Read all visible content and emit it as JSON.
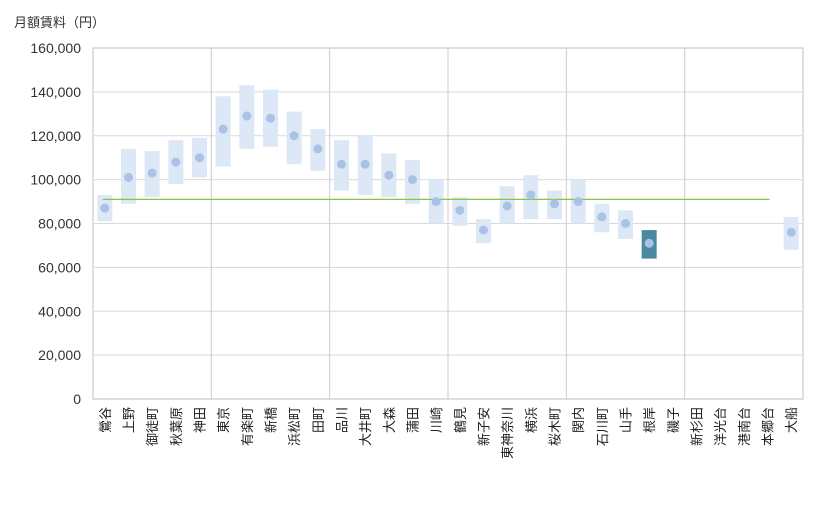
{
  "chart_data": {
    "type": "range-dot",
    "unit_label": "月額賃料（円）",
    "y_ticks": [
      "160,000",
      "140,000",
      "120,000",
      "100,000",
      "80,000",
      "60,000",
      "40,000",
      "20,000",
      "0"
    ],
    "ylim": [
      0,
      160000
    ],
    "categories": [
      "鶯谷",
      "上野",
      "御徒町",
      "秋葉原",
      "神田",
      "東京",
      "有楽町",
      "新橋",
      "浜松町",
      "田町",
      "品川",
      "大井町",
      "大森",
      "蒲田",
      "川崎",
      "鶴見",
      "新子安",
      "東神奈川",
      "横浜",
      "桜木町",
      "関内",
      "石川町",
      "山手",
      "根岸",
      "磯子",
      "新杉田",
      "洋光台",
      "港南台",
      "本郷台",
      "大船"
    ],
    "group_separators_after": [
      4,
      9,
      14,
      19,
      24
    ],
    "highlight_category": "根岸",
    "reference_value": 91000,
    "series": [
      {
        "name": "range_low",
        "values": [
          81000,
          89000,
          92000,
          98000,
          101000,
          106000,
          114000,
          115000,
          107000,
          104000,
          95000,
          93000,
          92000,
          89000,
          80000,
          79000,
          71000,
          80000,
          82000,
          82000,
          80000,
          76000,
          73000,
          64000,
          null,
          null,
          null,
          null,
          null,
          68000
        ]
      },
      {
        "name": "range_high",
        "values": [
          93000,
          114000,
          113000,
          118000,
          119000,
          138000,
          143000,
          141000,
          131000,
          123000,
          118000,
          120000,
          112000,
          109000,
          100000,
          92000,
          82000,
          97000,
          102000,
          95000,
          100000,
          89000,
          86000,
          77000,
          null,
          null,
          null,
          null,
          null,
          83000
        ]
      },
      {
        "name": "average",
        "values": [
          87000,
          101000,
          103000,
          108000,
          110000,
          123000,
          129000,
          128000,
          120000,
          114000,
          107000,
          107000,
          102000,
          100000,
          90000,
          86000,
          77000,
          88000,
          93000,
          89000,
          90000,
          83000,
          80000,
          71000,
          null,
          null,
          null,
          null,
          null,
          76000
        ]
      }
    ],
    "colors": {
      "range_fill": "#dce8f5",
      "average_dot": "#a9c2e6",
      "highlight_fill": "#4a8aa0",
      "reference_line": "#8ac34a",
      "grid": "#d9d9d9",
      "axis": "#bfbfbf",
      "separator": "#cccccc"
    }
  }
}
